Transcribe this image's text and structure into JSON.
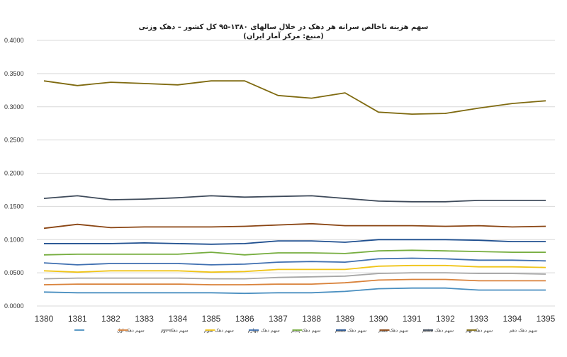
{
  "chart_data": {
    "type": "line",
    "title": "سهم هزینه ناخالص سرانه هر دهک در خلال سالهای ۱۳۸۰-۹۵ کل کشور – دهک وزنی",
    "subtitle": "(منبع: مرکز آمار ایران)",
    "xlabel": "",
    "ylabel": "",
    "ylim": [
      0,
      0.4
    ],
    "yticks": [
      "0.0000",
      "0.0500",
      "0.1000",
      "0.1500",
      "0.2000",
      "0.2500",
      "0.3000",
      "0.3500",
      "0.4000"
    ],
    "x": [
      "1380",
      "1381",
      "1382",
      "1383",
      "1384",
      "1385",
      "1386",
      "1387",
      "1388",
      "1389",
      "1390",
      "1391",
      "1392",
      "1393",
      "1394",
      "1395"
    ],
    "grid": true,
    "legend_position": "bottom",
    "series": [
      {
        "name": "سهم دهک اول",
        "color": "#4a8fc0",
        "values": [
          0.021,
          0.02,
          0.02,
          0.02,
          0.02,
          0.02,
          0.019,
          0.02,
          0.02,
          0.022,
          0.026,
          0.027,
          0.027,
          0.024,
          0.024,
          0.024
        ]
      },
      {
        "name": "سهم دهک دوم",
        "color": "#d9823b",
        "values": [
          0.032,
          0.033,
          0.033,
          0.033,
          0.033,
          0.032,
          0.032,
          0.033,
          0.033,
          0.035,
          0.039,
          0.04,
          0.04,
          0.038,
          0.038,
          0.038
        ]
      },
      {
        "name": "سهم دهک سوم",
        "color": "#a6a6a6",
        "values": [
          0.041,
          0.042,
          0.042,
          0.042,
          0.042,
          0.041,
          0.041,
          0.043,
          0.044,
          0.045,
          0.049,
          0.05,
          0.05,
          0.049,
          0.049,
          0.048
        ]
      },
      {
        "name": "سهم دهک چهارم",
        "color": "#f0c418",
        "values": [
          0.053,
          0.051,
          0.053,
          0.053,
          0.053,
          0.051,
          0.052,
          0.055,
          0.055,
          0.055,
          0.06,
          0.061,
          0.061,
          0.059,
          0.059,
          0.058
        ]
      },
      {
        "name": "سهم دهک پنجم",
        "color": "#3f6fb0",
        "values": [
          0.065,
          0.062,
          0.064,
          0.064,
          0.064,
          0.062,
          0.063,
          0.066,
          0.067,
          0.066,
          0.071,
          0.072,
          0.071,
          0.069,
          0.069,
          0.068
        ]
      },
      {
        "name": "سهم دهک ششم",
        "color": "#76ad3f",
        "values": [
          0.077,
          0.078,
          0.078,
          0.078,
          0.078,
          0.081,
          0.077,
          0.08,
          0.08,
          0.079,
          0.083,
          0.084,
          0.083,
          0.082,
          0.081,
          0.081
        ]
      },
      {
        "name": "سهم دهک هفتم",
        "color": "#1f4f8f",
        "values": [
          0.094,
          0.094,
          0.094,
          0.095,
          0.094,
          0.093,
          0.094,
          0.098,
          0.098,
          0.096,
          0.1,
          0.1,
          0.1,
          0.099,
          0.097,
          0.097
        ]
      },
      {
        "name": "سهم دهک هشتم",
        "color": "#8a4513",
        "values": [
          0.117,
          0.123,
          0.118,
          0.119,
          0.119,
          0.119,
          0.12,
          0.122,
          0.124,
          0.121,
          0.121,
          0.121,
          0.12,
          0.121,
          0.119,
          0.12
        ]
      },
      {
        "name": "سهم دهک نهم",
        "color": "#3e4a5a",
        "values": [
          0.162,
          0.166,
          0.16,
          0.161,
          0.163,
          0.166,
          0.164,
          0.165,
          0.166,
          0.162,
          0.158,
          0.157,
          0.157,
          0.159,
          0.159,
          0.159
        ]
      },
      {
        "name": "سهم دهک دهم",
        "color": "#7f6a10",
        "values": [
          0.339,
          0.332,
          0.337,
          0.335,
          0.333,
          0.339,
          0.339,
          0.317,
          0.313,
          0.321,
          0.292,
          0.289,
          0.29,
          0.298,
          0.305,
          0.309
        ]
      }
    ]
  }
}
